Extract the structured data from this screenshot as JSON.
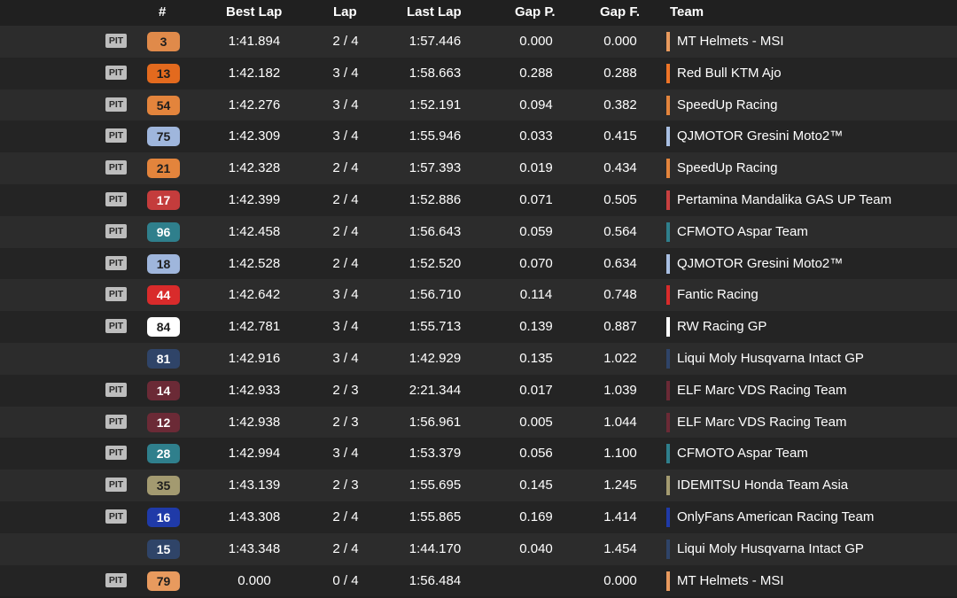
{
  "header": {
    "num": "#",
    "best_lap": "Best Lap",
    "lap": "Lap",
    "last_lap": "Last Lap",
    "gap_p": "Gap P.",
    "gap_f": "Gap F.",
    "team": "Team"
  },
  "rows": [
    {
      "pit": "PIT",
      "num": "3",
      "num_bg": "#e08a4a",
      "num_fg": "#1e1e1e",
      "best": "1:41.894",
      "lap": "2 / 4",
      "last": "1:57.446",
      "gapp": "0.000",
      "gapf": "0.000",
      "team": "MT Helmets - MSI",
      "team_color": "#e89a5e"
    },
    {
      "pit": "PIT",
      "num": "13",
      "num_bg": "#e36a1e",
      "num_fg": "#1e1e1e",
      "best": "1:42.182",
      "lap": "3 / 4",
      "last": "1:58.663",
      "gapp": "0.288",
      "gapf": "0.288",
      "team": "Red Bull KTM Ajo",
      "team_color": "#ee7427"
    },
    {
      "pit": "PIT",
      "num": "54",
      "num_bg": "#e3843c",
      "num_fg": "#1e1e1e",
      "best": "1:42.276",
      "lap": "3 / 4",
      "last": "1:52.191",
      "gapp": "0.094",
      "gapf": "0.382",
      "team": "SpeedUp Racing",
      "team_color": "#e3843c"
    },
    {
      "pit": "PIT",
      "num": "75",
      "num_bg": "#9fb6dc",
      "num_fg": "#1e1e1e",
      "best": "1:42.309",
      "lap": "3 / 4",
      "last": "1:55.946",
      "gapp": "0.033",
      "gapf": "0.415",
      "team": "QJMOTOR Gresini Moto2™",
      "team_color": "#a9bfe2"
    },
    {
      "pit": "PIT",
      "num": "21",
      "num_bg": "#e3843c",
      "num_fg": "#1e1e1e",
      "best": "1:42.328",
      "lap": "2 / 4",
      "last": "1:57.393",
      "gapp": "0.019",
      "gapf": "0.434",
      "team": "SpeedUp Racing",
      "team_color": "#e3843c"
    },
    {
      "pit": "PIT",
      "num": "17",
      "num_bg": "#c43c3c",
      "num_fg": "#ffffff",
      "best": "1:42.399",
      "lap": "2 / 4",
      "last": "1:52.886",
      "gapp": "0.071",
      "gapf": "0.505",
      "team": "Pertamina Mandalika GAS UP Team",
      "team_color": "#c84040"
    },
    {
      "pit": "PIT",
      "num": "96",
      "num_bg": "#2f7f8c",
      "num_fg": "#ffffff",
      "best": "1:42.458",
      "lap": "2 / 4",
      "last": "1:56.643",
      "gapp": "0.059",
      "gapf": "0.564",
      "team": "CFMOTO Aspar Team",
      "team_color": "#2f7f8c"
    },
    {
      "pit": "PIT",
      "num": "18",
      "num_bg": "#9fb6dc",
      "num_fg": "#1e1e1e",
      "best": "1:42.528",
      "lap": "2 / 4",
      "last": "1:52.520",
      "gapp": "0.070",
      "gapf": "0.634",
      "team": "QJMOTOR Gresini Moto2™",
      "team_color": "#a9bfe2"
    },
    {
      "pit": "PIT",
      "num": "44",
      "num_bg": "#d92b2b",
      "num_fg": "#ffffff",
      "best": "1:42.642",
      "lap": "3 / 4",
      "last": "1:56.710",
      "gapp": "0.114",
      "gapf": "0.748",
      "team": "Fantic Racing",
      "team_color": "#d92b2b"
    },
    {
      "pit": "PIT",
      "num": "84",
      "num_bg": "#ffffff",
      "num_fg": "#1e1e1e",
      "best": "1:42.781",
      "lap": "3 / 4",
      "last": "1:55.713",
      "gapp": "0.139",
      "gapf": "0.887",
      "team": "RW Racing GP",
      "team_color": "#ffffff"
    },
    {
      "pit": "",
      "num": "81",
      "num_bg": "#2f4468",
      "num_fg": "#ffffff",
      "best": "1:42.916",
      "lap": "3 / 4",
      "last": "1:42.929",
      "gapp": "0.135",
      "gapf": "1.022",
      "team": "Liqui Moly Husqvarna Intact GP",
      "team_color": "#2f4468"
    },
    {
      "pit": "PIT",
      "num": "14",
      "num_bg": "#6b2a36",
      "num_fg": "#ffffff",
      "best": "1:42.933",
      "lap": "2 / 3",
      "last": "2:21.344",
      "gapp": "0.017",
      "gapf": "1.039",
      "team": "ELF Marc VDS Racing Team",
      "team_color": "#6b2a36"
    },
    {
      "pit": "PIT",
      "num": "12",
      "num_bg": "#6b2a36",
      "num_fg": "#ffffff",
      "best": "1:42.938",
      "lap": "2 / 3",
      "last": "1:56.961",
      "gapp": "0.005",
      "gapf": "1.044",
      "team": "ELF Marc VDS Racing Team",
      "team_color": "#6b2a36"
    },
    {
      "pit": "PIT",
      "num": "28",
      "num_bg": "#2f7f8c",
      "num_fg": "#ffffff",
      "best": "1:42.994",
      "lap": "3 / 4",
      "last": "1:53.379",
      "gapp": "0.056",
      "gapf": "1.100",
      "team": "CFMOTO Aspar Team",
      "team_color": "#2f7f8c"
    },
    {
      "pit": "PIT",
      "num": "35",
      "num_bg": "#a39a70",
      "num_fg": "#1e1e1e",
      "best": "1:43.139",
      "lap": "2 / 3",
      "last": "1:55.695",
      "gapp": "0.145",
      "gapf": "1.245",
      "team": "IDEMITSU Honda Team Asia",
      "team_color": "#a39a70"
    },
    {
      "pit": "PIT",
      "num": "16",
      "num_bg": "#1f3aa8",
      "num_fg": "#ffffff",
      "best": "1:43.308",
      "lap": "2 / 4",
      "last": "1:55.865",
      "gapp": "0.169",
      "gapf": "1.414",
      "team": "OnlyFans American Racing Team",
      "team_color": "#1f3aa8"
    },
    {
      "pit": "",
      "num": "15",
      "num_bg": "#2f4468",
      "num_fg": "#ffffff",
      "best": "1:43.348",
      "lap": "2 / 4",
      "last": "1:44.170",
      "gapp": "0.040",
      "gapf": "1.454",
      "team": "Liqui Moly Husqvarna Intact GP",
      "team_color": "#2f4468"
    },
    {
      "pit": "PIT",
      "num": "79",
      "num_bg": "#e89a5e",
      "num_fg": "#1e1e1e",
      "best": "0.000",
      "lap": "0 / 4",
      "last": "1:56.484",
      "gapp": "",
      "gapf": "0.000",
      "team": "MT Helmets - MSI",
      "team_color": "#e89a5e"
    }
  ]
}
